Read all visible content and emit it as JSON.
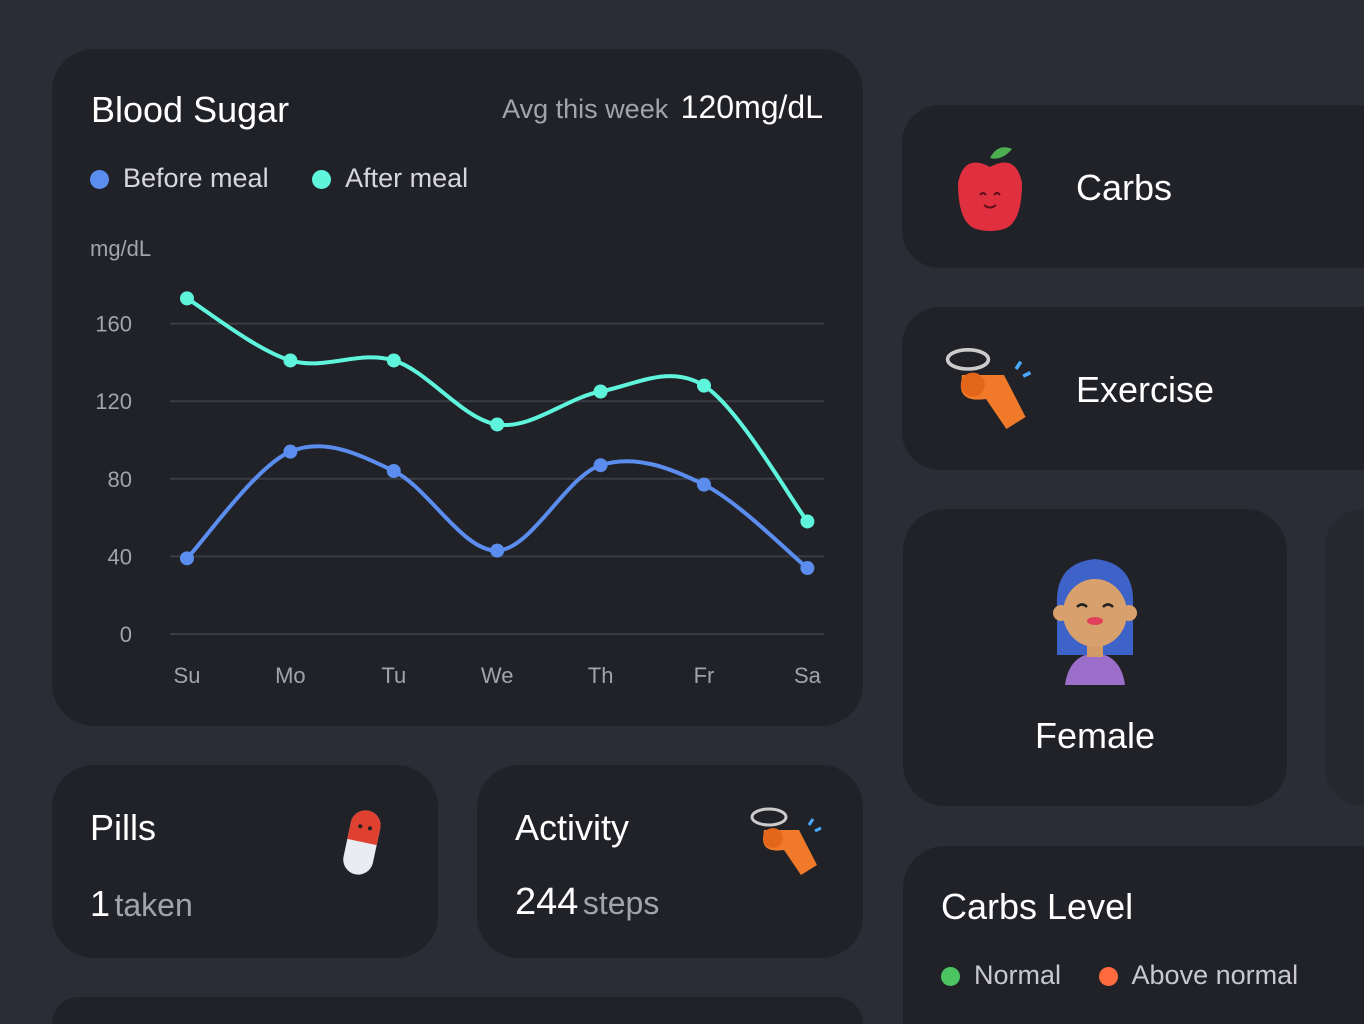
{
  "blood_sugar": {
    "title": "Blood Sugar",
    "avg_label": "Avg this week",
    "avg_value": "120mg/dL",
    "unit": "mg/dL",
    "legend": [
      {
        "label": "Before meal",
        "color": "#5b8def"
      },
      {
        "label": "After meal",
        "color": "#5ef5dc"
      }
    ]
  },
  "chart_data": {
    "type": "line",
    "ylabel": "mg/dL",
    "ylim": [
      0,
      180
    ],
    "yticks": [
      "0",
      "40",
      "80",
      "120",
      "160"
    ],
    "categories": [
      "Su",
      "Mo",
      "Tu",
      "We",
      "Th",
      "Fr",
      "Sa"
    ],
    "grid": true,
    "legend_placement": "top-left",
    "series": [
      {
        "name": "Before meal",
        "color": "#5b8def",
        "values": [
          39,
          94,
          84,
          43,
          87,
          77,
          34
        ]
      },
      {
        "name": "After meal",
        "color": "#5ef5dc",
        "values": [
          173,
          141,
          141,
          108,
          125,
          128,
          58
        ]
      }
    ]
  },
  "pills": {
    "title": "Pills",
    "count": "1",
    "unit": "taken",
    "icon": "pill-icon"
  },
  "activity": {
    "title": "Activity",
    "count": "244",
    "unit": "steps",
    "icon": "whistle-icon"
  },
  "carbs": {
    "label": "Carbs",
    "icon": "apple-icon"
  },
  "exercise": {
    "label": "Exercise",
    "icon": "whistle-icon"
  },
  "gender": {
    "label": "Female",
    "icon": "female-avatar-icon"
  },
  "carbs_level": {
    "title": "Carbs Level",
    "legend": [
      {
        "label": "Normal",
        "color": "#4cc462"
      },
      {
        "label": "Above normal",
        "color": "#ff6b3d"
      }
    ]
  }
}
